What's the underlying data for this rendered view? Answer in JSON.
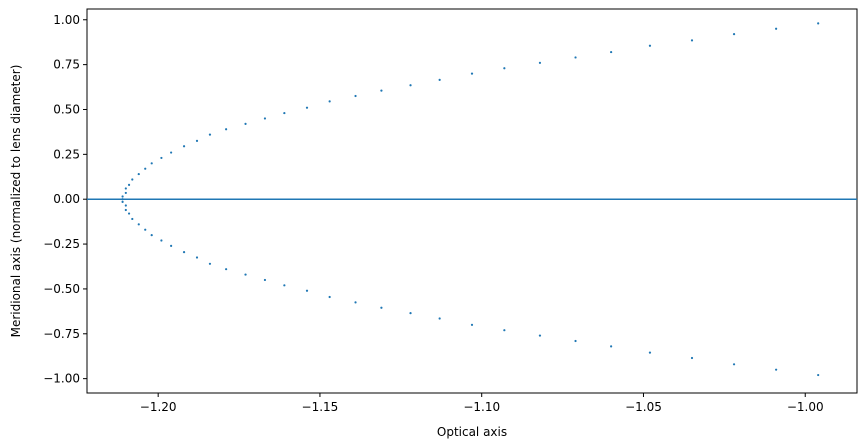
{
  "chart_data": {
    "type": "scatter",
    "title": "",
    "xlabel": "Optical axis",
    "ylabel": "Meridional axis (normalized to lens diameter)",
    "xlim": [
      -1.222,
      -0.984
    ],
    "ylim": [
      -1.08,
      1.06
    ],
    "grid": false,
    "x_ticks": [
      -1.2,
      -1.15,
      -1.1,
      -1.05,
      -1.0
    ],
    "x_tick_labels": [
      "−1.20",
      "−1.15",
      "−1.10",
      "−1.05",
      "−1.00"
    ],
    "y_ticks": [
      1.0,
      0.75,
      0.5,
      0.25,
      0.0,
      -0.25,
      -0.5,
      -0.75,
      -1.0
    ],
    "y_tick_labels": [
      "1.00",
      "0.75",
      "0.50",
      "0.25",
      "0.00",
      "−0.25",
      "−0.50",
      "−0.75",
      "−1.00"
    ],
    "hline": {
      "y": 0.0,
      "color": "#1f77b4"
    },
    "series": [
      {
        "color": "#1f77b4",
        "x": [
          -0.996,
          -1.009,
          -1.022,
          -1.035,
          -1.048,
          -1.06,
          -1.071,
          -1.082,
          -1.093,
          -1.103,
          -1.113,
          -1.122,
          -1.131,
          -1.139,
          -1.147,
          -1.154,
          -1.161,
          -1.167,
          -1.173,
          -1.179,
          -1.184,
          -1.188,
          -1.192,
          -1.196,
          -1.199,
          -1.202,
          -1.204,
          -1.206,
          -1.208,
          -1.209,
          -1.21,
          -1.21,
          -1.211,
          -1.211,
          -1.211,
          -1.21,
          -1.21,
          -1.209,
          -1.208,
          -1.206,
          -1.204,
          -1.202,
          -1.199,
          -1.196,
          -1.192,
          -1.188,
          -1.184,
          -1.179,
          -1.173,
          -1.167,
          -1.161,
          -1.154,
          -1.147,
          -1.139,
          -1.131,
          -1.122,
          -1.113,
          -1.103,
          -1.093,
          -1.082,
          -1.071,
          -1.06,
          -1.048,
          -1.035,
          -1.022,
          -1.009,
          -0.996
        ],
        "y": [
          0.98,
          0.95,
          0.92,
          0.885,
          0.855,
          0.82,
          0.79,
          0.76,
          0.73,
          0.7,
          0.665,
          0.635,
          0.605,
          0.575,
          0.545,
          0.51,
          0.48,
          0.45,
          0.42,
          0.39,
          0.36,
          0.325,
          0.295,
          0.26,
          0.23,
          0.2,
          0.17,
          0.14,
          0.11,
          0.08,
          0.06,
          0.035,
          0.015,
          0.0,
          -0.015,
          -0.035,
          -0.06,
          -0.08,
          -0.11,
          -0.14,
          -0.17,
          -0.2,
          -0.23,
          -0.26,
          -0.295,
          -0.325,
          -0.36,
          -0.39,
          -0.42,
          -0.45,
          -0.48,
          -0.51,
          -0.545,
          -0.575,
          -0.605,
          -0.635,
          -0.665,
          -0.7,
          -0.73,
          -0.76,
          -0.79,
          -0.82,
          -0.855,
          -0.885,
          -0.92,
          -0.95,
          -0.98
        ]
      }
    ]
  }
}
